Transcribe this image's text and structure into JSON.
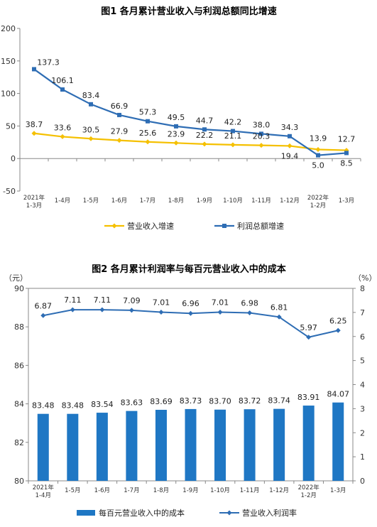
{
  "chart_data": [
    {
      "type": "line",
      "title": "图1  各月累计营业收入与利润总额同比增速",
      "categories": [
        [
          "2021年",
          "1-3月"
        ],
        [
          "1-4月"
        ],
        [
          "1-5月"
        ],
        [
          "1-6月"
        ],
        [
          "1-7月"
        ],
        [
          "1-8月"
        ],
        [
          "1-9月"
        ],
        [
          "1-10月"
        ],
        [
          "1-11月"
        ],
        [
          "1-12月"
        ],
        [
          "2022年",
          "1-2月"
        ],
        [
          "1-3月"
        ]
      ],
      "ylim": [
        -50,
        200
      ],
      "yticks": [
        -50,
        0,
        50,
        100,
        150,
        200
      ],
      "ylabel": "",
      "xlabel": "",
      "grid": false,
      "legend_position": "bottom",
      "series": [
        {
          "name": "营业收入增速",
          "color": "#F5C000",
          "marker": "diamond",
          "values": [
            38.7,
            33.6,
            30.5,
            27.9,
            25.6,
            23.9,
            22.2,
            21.1,
            20.3,
            19.4,
            13.9,
            12.7
          ],
          "labels": [
            "38.7",
            "33.6",
            "30.5",
            "27.9",
            "25.6",
            "23.9",
            "22.2",
            "21.1",
            "20.3",
            "19.4",
            "13.9",
            "12.7"
          ]
        },
        {
          "name": "利润总额增速",
          "color": "#2E6DB4",
          "marker": "square",
          "values": [
            137.3,
            106.1,
            83.4,
            66.9,
            57.3,
            49.5,
            44.7,
            42.2,
            38.0,
            34.3,
            5.0,
            8.5
          ],
          "labels": [
            "137.3",
            "106.1",
            "83.4",
            "66.9",
            "57.3",
            "49.5",
            "44.7",
            "42.2",
            "38.0",
            "34.3",
            "5.0",
            "8.5"
          ]
        }
      ]
    },
    {
      "type": "bar",
      "title": "图2  各月累计利润率与每百元营业收入中的成本",
      "categories": [
        [
          "2021年",
          "1-4月"
        ],
        [
          "1-5月"
        ],
        [
          "1-6月"
        ],
        [
          "1-7月"
        ],
        [
          "1-8月"
        ],
        [
          "1-9月"
        ],
        [
          "1-10月"
        ],
        [
          "1-11月"
        ],
        [
          "1-12月"
        ],
        [
          "2022年",
          "1-2月"
        ],
        [
          "1-3月"
        ]
      ],
      "y_left_unit": "（元）",
      "y_right_unit": "（%）",
      "ylim_left": [
        80,
        90
      ],
      "yticks_left": [
        80,
        82,
        84,
        86,
        88,
        90
      ],
      "ylim_right": [
        0,
        8
      ],
      "yticks_right": [
        0,
        1,
        2,
        3,
        4,
        5,
        6,
        7,
        8
      ],
      "grid": false,
      "legend_position": "bottom",
      "series": [
        {
          "name": "每百元营业收入中的成本",
          "type": "bar",
          "axis": "left",
          "color": "#1F77C4",
          "values": [
            83.48,
            83.48,
            83.54,
            83.63,
            83.69,
            83.73,
            83.7,
            83.72,
            83.74,
            83.91,
            84.07
          ],
          "labels": [
            "83.48",
            "83.48",
            "83.54",
            "83.63",
            "83.69",
            "83.73",
            "83.70",
            "83.72",
            "83.74",
            "83.91",
            "84.07"
          ]
        },
        {
          "name": "营业收入利润率",
          "type": "line",
          "axis": "right",
          "color": "#2E6DB4",
          "marker": "diamond",
          "values": [
            6.87,
            7.11,
            7.11,
            7.09,
            7.01,
            6.96,
            7.01,
            6.98,
            6.81,
            5.97,
            6.25
          ],
          "labels": [
            "6.87",
            "7.11",
            "7.11",
            "7.09",
            "7.01",
            "6.96",
            "7.01",
            "6.98",
            "6.81",
            "5.97",
            "6.25"
          ]
        }
      ]
    }
  ]
}
